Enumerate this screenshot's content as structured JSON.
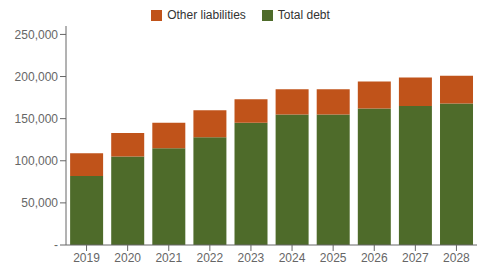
{
  "chart_data": {
    "type": "bar",
    "categories": [
      "2019",
      "2020",
      "2021",
      "2022",
      "2023",
      "2024",
      "2025",
      "2026",
      "2027",
      "2028"
    ],
    "series": [
      {
        "name": "Total debt",
        "color": "#4E6B2A",
        "values": [
          82000,
          105000,
          115000,
          128000,
          145000,
          155000,
          155000,
          162000,
          165000,
          168000
        ]
      },
      {
        "name": "Other liabilities",
        "color": "#C0531A",
        "values": [
          27000,
          28000,
          30000,
          32000,
          28000,
          30000,
          30000,
          32000,
          34000,
          33000
        ]
      }
    ],
    "stacked": true,
    "ylim": [
      0,
      260000
    ],
    "yticks": [
      {
        "value": 0,
        "label": "-"
      },
      {
        "value": 50000,
        "label": "50,000"
      },
      {
        "value": 100000,
        "label": "100,000"
      },
      {
        "value": 150000,
        "label": "150,000"
      },
      {
        "value": 200000,
        "label": "200,000"
      },
      {
        "value": 250000,
        "label": "250,000"
      }
    ],
    "grid": false,
    "legend": "top"
  }
}
